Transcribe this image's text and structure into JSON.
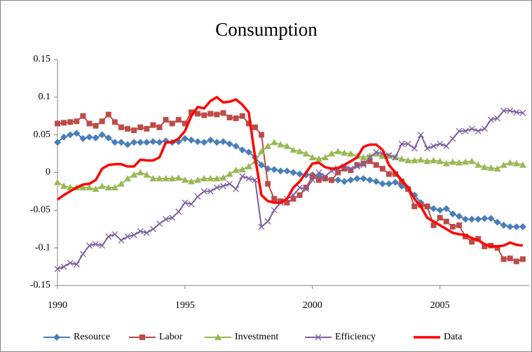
{
  "chart_data": {
    "type": "line",
    "title": "Consumption",
    "x": [
      1990,
      1990.25,
      1990.5,
      1990.75,
      1991,
      1991.25,
      1991.5,
      1991.75,
      1992,
      1992.25,
      1992.5,
      1992.75,
      1993,
      1993.25,
      1993.5,
      1993.75,
      1994,
      1994.25,
      1994.5,
      1994.75,
      1995,
      1995.25,
      1995.5,
      1995.75,
      1996,
      1996.25,
      1996.5,
      1996.75,
      1997,
      1997.25,
      1997.5,
      1997.75,
      1998,
      1998.25,
      1998.5,
      1998.75,
      1999,
      1999.25,
      1999.5,
      1999.75,
      2000,
      2000.25,
      2000.5,
      2000.75,
      2001,
      2001.25,
      2001.5,
      2001.75,
      2002,
      2002.25,
      2002.5,
      2002.75,
      2003,
      2003.25,
      2003.5,
      2003.75,
      2004,
      2004.25,
      2004.5,
      2004.75,
      2005,
      2005.25,
      2005.5,
      2005.75,
      2006,
      2006.25,
      2006.5,
      2006.75,
      2007,
      2007.25,
      2007.5,
      2007.75,
      2008,
      2008.25
    ],
    "series": [
      {
        "name": "Resource",
        "color": "#4a7ebb",
        "marker": "diamond",
        "values": [
          0.04,
          0.047,
          0.05,
          0.052,
          0.045,
          0.047,
          0.046,
          0.05,
          0.046,
          0.04,
          0.04,
          0.037,
          0.04,
          0.04,
          0.04,
          0.041,
          0.04,
          0.042,
          0.04,
          0.041,
          0.045,
          0.043,
          0.041,
          0.04,
          0.043,
          0.04,
          0.041,
          0.038,
          0.035,
          0.03,
          0.027,
          0.02,
          0.01,
          0.005,
          0.004,
          0.002,
          0.002,
          0,
          -0.002,
          -0.003,
          -0.003,
          -0.005,
          -0.008,
          -0.01,
          -0.01,
          -0.012,
          -0.01,
          -0.008,
          -0.008,
          -0.01,
          -0.012,
          -0.015,
          -0.015,
          -0.013,
          -0.018,
          -0.022,
          -0.03,
          -0.04,
          -0.045,
          -0.048,
          -0.05,
          -0.048,
          -0.055,
          -0.058,
          -0.062,
          -0.062,
          -0.062,
          -0.061,
          -0.061,
          -0.066,
          -0.07,
          -0.072,
          -0.072,
          -0.072
        ]
      },
      {
        "name": "Labor",
        "color": "#be4b48",
        "marker": "square",
        "values": [
          0.065,
          0.066,
          0.067,
          0.068,
          0.075,
          0.065,
          0.062,
          0.068,
          0.077,
          0.067,
          0.06,
          0.058,
          0.056,
          0.06,
          0.058,
          0.063,
          0.06,
          0.07,
          0.065,
          0.07,
          0.065,
          0.08,
          0.078,
          0.076,
          0.078,
          0.077,
          0.079,
          0.073,
          0.072,
          0.075,
          0.065,
          0.06,
          0.05,
          -0.015,
          -0.035,
          -0.038,
          -0.04,
          -0.035,
          -0.03,
          -0.02,
          -0.005,
          -0.01,
          -0.008,
          -0.01,
          0,
          0.005,
          0.003,
          0.01,
          0.012,
          0.015,
          0.01,
          0.005,
          -0.002,
          -0.002,
          -0.012,
          -0.022,
          -0.045,
          -0.043,
          -0.045,
          -0.07,
          -0.06,
          -0.065,
          -0.072,
          -0.07,
          -0.085,
          -0.092,
          -0.088,
          -0.098,
          -0.097,
          -0.1,
          -0.115,
          -0.114,
          -0.118,
          -0.115
        ]
      },
      {
        "name": "Investment",
        "color": "#98b954",
        "marker": "triangle",
        "values": [
          -0.013,
          -0.018,
          -0.02,
          -0.02,
          -0.02,
          -0.02,
          -0.022,
          -0.018,
          -0.02,
          -0.02,
          -0.015,
          -0.008,
          -0.003,
          0,
          -0.003,
          -0.008,
          -0.008,
          -0.008,
          -0.008,
          -0.007,
          -0.01,
          -0.012,
          -0.01,
          -0.008,
          -0.008,
          -0.008,
          -0.007,
          -0.002,
          0.003,
          0.004,
          0.008,
          0.015,
          0.028,
          0.035,
          0.04,
          0.037,
          0.035,
          0.03,
          0.028,
          0.025,
          0.02,
          0.018,
          0.02,
          0.025,
          0.028,
          0.026,
          0.025,
          0.022,
          0.02,
          0.022,
          0.025,
          0.022,
          0.022,
          0.02,
          0.018,
          0.016,
          0.016,
          0.017,
          0.015,
          0.016,
          0.015,
          0.012,
          0.014,
          0.013,
          0.014,
          0.015,
          0.01,
          0.007,
          0.006,
          0.005,
          0.01,
          0.013,
          0.012,
          0.01
        ]
      },
      {
        "name": "Efficiency",
        "color": "#7d5fa0",
        "marker": "cross",
        "values": [
          -0.128,
          -0.125,
          -0.12,
          -0.122,
          -0.108,
          -0.097,
          -0.095,
          -0.097,
          -0.085,
          -0.082,
          -0.09,
          -0.085,
          -0.083,
          -0.078,
          -0.08,
          -0.075,
          -0.068,
          -0.062,
          -0.06,
          -0.052,
          -0.04,
          -0.042,
          -0.032,
          -0.025,
          -0.025,
          -0.02,
          -0.018,
          -0.015,
          -0.022,
          -0.005,
          -0.008,
          -0.01,
          -0.072,
          -0.065,
          -0.05,
          -0.04,
          -0.035,
          -0.03,
          -0.02,
          -0.022,
          -0.01,
          0,
          -0.005,
          0.002,
          0.005,
          0.008,
          0.005,
          0.008,
          0.01,
          0.02,
          0.027,
          0.025,
          0.023,
          0.02,
          0.038,
          0.038,
          0.032,
          0.05,
          0.032,
          0.035,
          0.038,
          0.035,
          0.045,
          0.055,
          0.055,
          0.058,
          0.055,
          0.058,
          0.07,
          0.072,
          0.082,
          0.082,
          0.08,
          0.079
        ]
      },
      {
        "name": "Data",
        "color": "#ff0000",
        "marker": "none",
        "values": [
          -0.036,
          -0.03,
          -0.025,
          -0.02,
          -0.016,
          -0.015,
          -0.01,
          0.005,
          0.01,
          0.011,
          0.011,
          0.008,
          0.008,
          0.017,
          0.016,
          0.016,
          0.02,
          0.04,
          0.04,
          0.045,
          0.055,
          0.075,
          0.087,
          0.085,
          0.095,
          0.1,
          0.093,
          0.094,
          0.097,
          0.09,
          0.08,
          0.02,
          -0.03,
          -0.038,
          -0.04,
          -0.04,
          -0.035,
          -0.02,
          -0.012,
          0,
          0.012,
          0.013,
          0.007,
          0.005,
          0.006,
          0.01,
          0.015,
          0.02,
          0.034,
          0.037,
          0.037,
          0.03,
          0.01,
          0,
          -0.01,
          -0.02,
          -0.035,
          -0.045,
          -0.06,
          -0.065,
          -0.07,
          -0.075,
          -0.08,
          -0.082,
          -0.083,
          -0.087,
          -0.09,
          -0.095,
          -0.098,
          -0.098,
          -0.097,
          -0.093,
          -0.096,
          -0.097
        ]
      }
    ],
    "xlim": [
      1990,
      2008.5
    ],
    "xticks": [
      1990,
      1995,
      2000,
      2005
    ],
    "ylim": [
      -0.15,
      0.15
    ],
    "yticks": [
      0.15,
      0.1,
      0.05,
      0,
      -0.05,
      -0.1,
      -0.15
    ],
    "grid": false,
    "legend": "bottom"
  }
}
